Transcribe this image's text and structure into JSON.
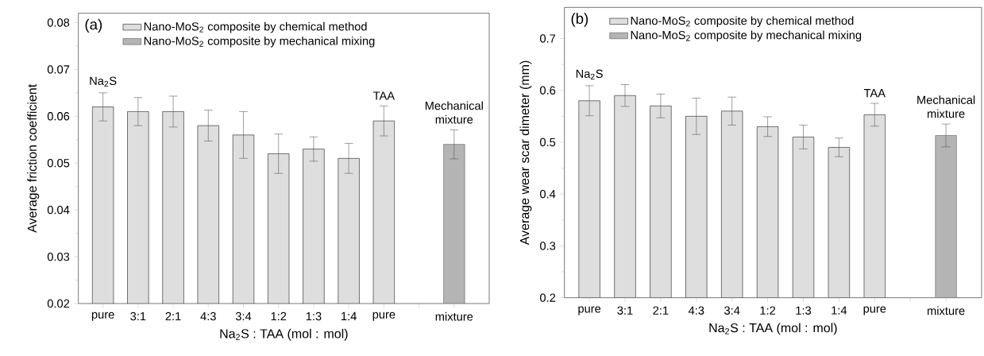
{
  "chart_data": [
    {
      "type": "bar",
      "title": "(a)",
      "xlabel": "Na$_{2}$S : TAA (mol : mol)",
      "ylabel": "Average friction coefficient",
      "categories": [
        "pure",
        "3:1",
        "2:1",
        "4:3",
        "3:4",
        "1:2",
        "1:3",
        "1:4",
        "pure",
        null,
        "mixture"
      ],
      "series": [
        {
          "name": "Nano-MoS$_{2}$ composite by chemical method",
          "color": "#dedede",
          "values": [
            0.062,
            0.061,
            0.061,
            0.058,
            0.056,
            0.052,
            0.053,
            0.051,
            0.059,
            null,
            null
          ],
          "errors": [
            0.003,
            0.003,
            0.0033,
            0.0033,
            0.005,
            0.0042,
            0.0026,
            0.0032,
            0.0032,
            null,
            null
          ]
        },
        {
          "name": "Nano-MoS$_{2}$ composite by mechanical mixing",
          "color": "#b4b4b4",
          "values": [
            null,
            null,
            null,
            null,
            null,
            null,
            null,
            null,
            null,
            null,
            0.054
          ],
          "errors": [
            null,
            null,
            null,
            null,
            null,
            null,
            null,
            null,
            null,
            null,
            0.0031
          ]
        }
      ],
      "ylim": [
        0.02,
        0.082
      ],
      "yticks": [
        0.02,
        0.03,
        0.04,
        0.05,
        0.06,
        0.07,
        0.08
      ],
      "legend": "top left",
      "annotations": [
        "Na$_{2}$S",
        "TAA",
        "Mechanical mixture"
      ]
    },
    {
      "type": "bar",
      "title": "(b)",
      "xlabel": "Na$_{2}$S : TAA (mol : mol)",
      "ylabel": "Average wear scar dimeter (mm)",
      "categories": [
        "pure",
        "3:1",
        "2:1",
        "4:3",
        "3:4",
        "1:2",
        "1:3",
        "1:4",
        "pure",
        null,
        "mixture"
      ],
      "series": [
        {
          "name": "Nano-MoS$_{2}$ composite by chemical method",
          "color": "#dedede",
          "values": [
            0.58,
            0.59,
            0.57,
            0.55,
            0.56,
            0.53,
            0.51,
            0.49,
            0.553,
            null,
            null
          ],
          "errors": [
            0.029,
            0.021,
            0.023,
            0.035,
            0.027,
            0.019,
            0.023,
            0.018,
            0.022,
            null,
            null
          ]
        },
        {
          "name": "Nano-MoS$_{2}$ composite by mechanical mixing",
          "color": "#b4b4b4",
          "values": [
            null,
            null,
            null,
            null,
            null,
            null,
            null,
            null,
            null,
            null,
            0.513
          ],
          "errors": [
            null,
            null,
            null,
            null,
            null,
            null,
            null,
            null,
            null,
            null,
            0.022
          ]
        }
      ],
      "ylim": [
        0.2,
        0.76
      ],
      "yticks": [
        0.2,
        0.3,
        0.4,
        0.5,
        0.6,
        0.7
      ],
      "legend": "top left",
      "annotations": [
        "Na$_{2}$S",
        "TAA",
        "Mechanical mixture"
      ]
    }
  ]
}
